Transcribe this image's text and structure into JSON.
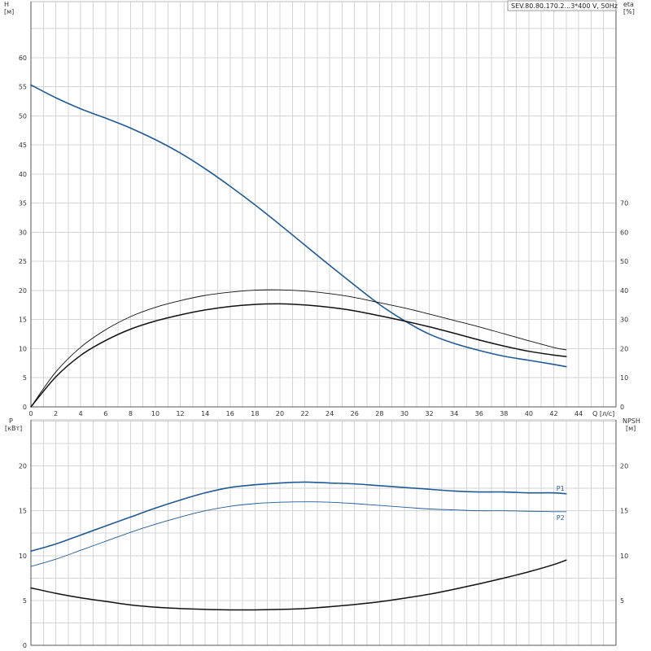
{
  "title": "SEV.80.80.170.2...3*400 V, 50Hz",
  "colors": {
    "blue": "#1f5a96",
    "black": "#111111",
    "grid": "#d4d4d4"
  },
  "chart_data": [
    {
      "type": "line",
      "panel": "performance",
      "xlabel": "Q [л/с]",
      "ylabel": "H\n[м]",
      "y2label": "eta\n[%]",
      "xlim": [
        0,
        47
      ],
      "ylim": [
        0,
        65
      ],
      "y2lim": [
        0,
        130
      ],
      "x_ticks": [
        0,
        2,
        4,
        6,
        8,
        10,
        12,
        14,
        16,
        18,
        20,
        22,
        24,
        26,
        28,
        30,
        32,
        34,
        36,
        38,
        40,
        42,
        44
      ],
      "y_ticks": [
        0,
        5,
        10,
        15,
        20,
        25,
        30,
        35,
        40,
        45,
        50,
        55,
        60
      ],
      "y2_ticks": [
        0,
        10,
        20,
        30,
        40,
        50,
        60,
        70
      ],
      "grid": true,
      "series": [
        {
          "name": "",
          "axis": "left",
          "color": "#1f5a96",
          "width": 1.6,
          "x": [
            0,
            2,
            4,
            6,
            8,
            10,
            12,
            14,
            16,
            18,
            20,
            22,
            24,
            26,
            28,
            30,
            32,
            34,
            36,
            38,
            40,
            42,
            43
          ],
          "y": [
            55.3,
            53.1,
            51.2,
            49.6,
            47.9,
            45.9,
            43.6,
            40.9,
            37.9,
            34.7,
            31.3,
            27.8,
            24.3,
            20.9,
            17.6,
            14.8,
            12.5,
            10.9,
            9.7,
            8.7,
            8.0,
            7.3,
            6.9
          ]
        },
        {
          "name": "",
          "axis": "right",
          "color": "#111111",
          "width": 0.9,
          "x": [
            0,
            2,
            4,
            6,
            8,
            10,
            12,
            14,
            16,
            18,
            20,
            22,
            24,
            26,
            28,
            30,
            32,
            34,
            36,
            38,
            40,
            42,
            43
          ],
          "y": [
            0,
            12.0,
            20.5,
            26.5,
            31.0,
            34.2,
            36.5,
            38.3,
            39.4,
            40.1,
            40.2,
            39.8,
            38.9,
            37.6,
            35.8,
            34.0,
            31.9,
            29.7,
            27.5,
            25.1,
            22.7,
            20.4,
            19.6
          ]
        },
        {
          "name": "",
          "axis": "right",
          "color": "#111111",
          "width": 1.5,
          "x": [
            0,
            2,
            4,
            6,
            8,
            10,
            12,
            14,
            16,
            18,
            20,
            22,
            24,
            26,
            28,
            30,
            32,
            34,
            36,
            38,
            40,
            42,
            43
          ],
          "y": [
            0,
            10.3,
            17.7,
            22.8,
            26.7,
            29.5,
            31.6,
            33.3,
            34.5,
            35.2,
            35.4,
            35.0,
            34.2,
            33.0,
            31.3,
            29.5,
            27.5,
            25.3,
            23.0,
            20.9,
            19.1,
            17.8,
            17.3
          ]
        }
      ]
    },
    {
      "type": "line",
      "panel": "power-npsh",
      "ylabel": "P\n[кВт]",
      "y2label": "NPSH\n[м]",
      "xlim": [
        0,
        47
      ],
      "ylim": [
        0,
        24.5
      ],
      "y2lim": [
        0,
        24.5
      ],
      "y_ticks": [
        0,
        5,
        10,
        15,
        20
      ],
      "y2_ticks": [
        5,
        10,
        15,
        20
      ],
      "grid": true,
      "series": [
        {
          "name": "P1",
          "axis": "left",
          "color": "#1f5a96",
          "width": 1.6,
          "x": [
            0,
            2,
            4,
            6,
            8,
            10,
            12,
            14,
            16,
            18,
            20,
            22,
            24,
            26,
            28,
            30,
            32,
            34,
            36,
            38,
            40,
            42,
            43
          ],
          "y": [
            10.5,
            11.3,
            12.3,
            13.3,
            14.3,
            15.3,
            16.2,
            17.0,
            17.6,
            17.9,
            18.1,
            18.2,
            18.1,
            18.0,
            17.8,
            17.6,
            17.4,
            17.2,
            17.1,
            17.1,
            17.0,
            17.0,
            16.9
          ]
        },
        {
          "name": "P2",
          "axis": "left",
          "color": "#1f5a96",
          "width": 0.9,
          "x": [
            0,
            2,
            4,
            6,
            8,
            10,
            12,
            14,
            16,
            18,
            20,
            22,
            24,
            26,
            28,
            30,
            32,
            34,
            36,
            38,
            40,
            42,
            43
          ],
          "y": [
            8.8,
            9.6,
            10.6,
            11.6,
            12.6,
            13.5,
            14.3,
            15.0,
            15.5,
            15.8,
            15.95,
            16.0,
            15.95,
            15.8,
            15.6,
            15.4,
            15.2,
            15.1,
            15.0,
            15.0,
            14.95,
            14.9,
            14.9
          ]
        },
        {
          "name": "",
          "axis": "right",
          "color": "#111111",
          "width": 1.5,
          "x": [
            0,
            2,
            4,
            6,
            8,
            10,
            12,
            14,
            16,
            18,
            20,
            22,
            24,
            26,
            28,
            30,
            32,
            34,
            36,
            38,
            40,
            42,
            43
          ],
          "y": [
            6.4,
            5.8,
            5.3,
            4.9,
            4.5,
            4.25,
            4.1,
            4.0,
            3.95,
            3.95,
            4.0,
            4.1,
            4.3,
            4.55,
            4.85,
            5.25,
            5.7,
            6.25,
            6.85,
            7.5,
            8.2,
            9.0,
            9.5
          ]
        }
      ]
    }
  ]
}
